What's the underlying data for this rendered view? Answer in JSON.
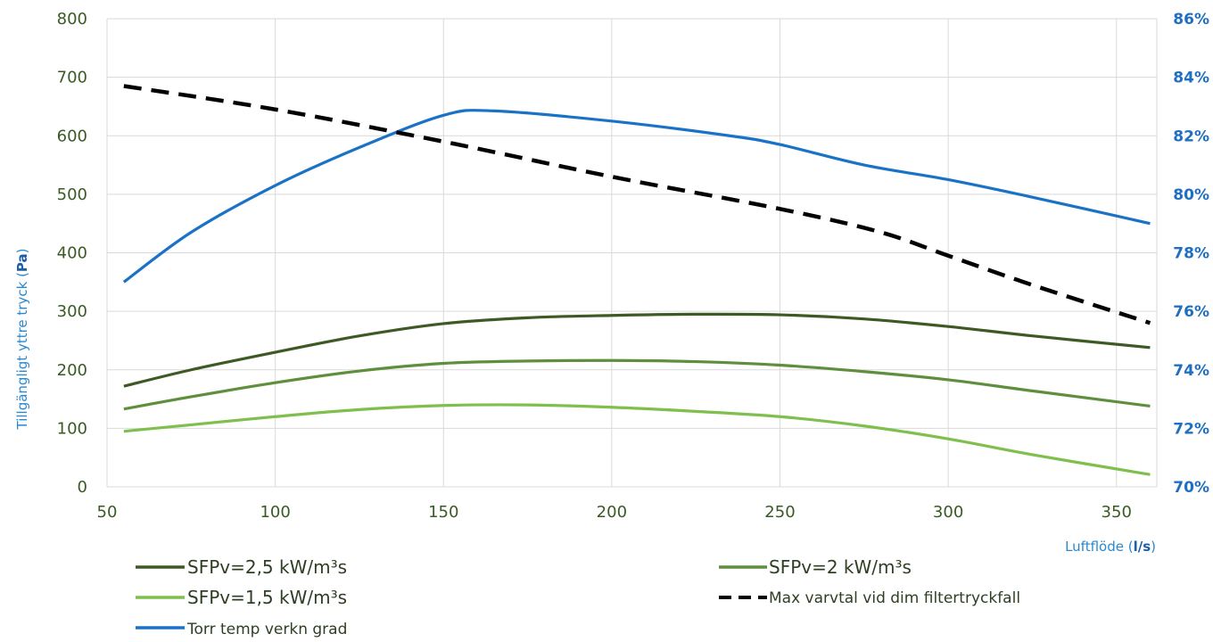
{
  "chart_data": {
    "type": "line",
    "xlabel": "Luftflöde",
    "xlabel_unit": "l/s",
    "ylabel": "Tillgängligt yttre tryck",
    "ylabel_unit": "Pa",
    "xlim": [
      50,
      362
    ],
    "x_ticks": [
      "50",
      "100",
      "150",
      "200",
      "250",
      "300",
      "350"
    ],
    "ylim": [
      0,
      800
    ],
    "y_ticks": [
      "0",
      "100",
      "200",
      "300",
      "400",
      "500",
      "600",
      "700",
      "800"
    ],
    "y2lim": [
      70,
      86
    ],
    "y2_ticks": [
      "70%",
      "72%",
      "74%",
      "76%",
      "78%",
      "80%",
      "82%",
      "84%",
      "86%"
    ],
    "grid": true,
    "legend_position": "bottom",
    "series": [
      {
        "name": "SFPv=2,5 kW/m³s",
        "axis": "left",
        "color": "#3d5a24",
        "style": "solid",
        "points": [
          [
            55,
            172
          ],
          [
            75,
            200
          ],
          [
            100,
            230
          ],
          [
            125,
            258
          ],
          [
            150,
            279
          ],
          [
            175,
            289
          ],
          [
            200,
            293
          ],
          [
            225,
            295
          ],
          [
            250,
            294
          ],
          [
            275,
            287
          ],
          [
            300,
            274
          ],
          [
            325,
            258
          ],
          [
            360,
            238
          ]
        ]
      },
      {
        "name": "SFPv=2 kW/m³s",
        "axis": "left",
        "color": "#5d8f3c",
        "style": "solid",
        "points": [
          [
            55,
            133
          ],
          [
            75,
            154
          ],
          [
            100,
            178
          ],
          [
            125,
            198
          ],
          [
            150,
            211
          ],
          [
            175,
            215
          ],
          [
            200,
            216
          ],
          [
            225,
            214
          ],
          [
            250,
            208
          ],
          [
            275,
            197
          ],
          [
            300,
            183
          ],
          [
            325,
            164
          ],
          [
            360,
            138
          ]
        ]
      },
      {
        "name": "SFPv=1,5 kW/m³s",
        "axis": "left",
        "color": "#7fbf4d",
        "style": "solid",
        "points": [
          [
            55,
            95
          ],
          [
            75,
            106
          ],
          [
            100,
            120
          ],
          [
            125,
            132
          ],
          [
            150,
            139
          ],
          [
            175,
            140
          ],
          [
            200,
            136
          ],
          [
            225,
            129
          ],
          [
            250,
            120
          ],
          [
            275,
            104
          ],
          [
            300,
            82
          ],
          [
            325,
            55
          ],
          [
            360,
            21
          ]
        ]
      },
      {
        "name": "Max varvtal vid dim filtertryckfall",
        "axis": "right",
        "color": "#000000",
        "style": "dashed",
        "points": [
          [
            55,
            83.7
          ],
          [
            100,
            82.9
          ],
          [
            150,
            81.8
          ],
          [
            200,
            80.6
          ],
          [
            250,
            79.5
          ],
          [
            280,
            78.7
          ],
          [
            300,
            77.9
          ],
          [
            325,
            76.9
          ],
          [
            360,
            75.6
          ]
        ]
      },
      {
        "name": "Torr temp verkn grad",
        "axis": "right",
        "color": "#1a72c7",
        "style": "solid",
        "points": [
          [
            55,
            77.0
          ],
          [
            75,
            78.7
          ],
          [
            100,
            80.3
          ],
          [
            125,
            81.6
          ],
          [
            150,
            82.7
          ],
          [
            165,
            82.85
          ],
          [
            200,
            82.5
          ],
          [
            235,
            82.0
          ],
          [
            250,
            81.7
          ],
          [
            275,
            81.0
          ],
          [
            300,
            80.5
          ],
          [
            325,
            79.9
          ],
          [
            360,
            79.0
          ]
        ]
      }
    ]
  }
}
